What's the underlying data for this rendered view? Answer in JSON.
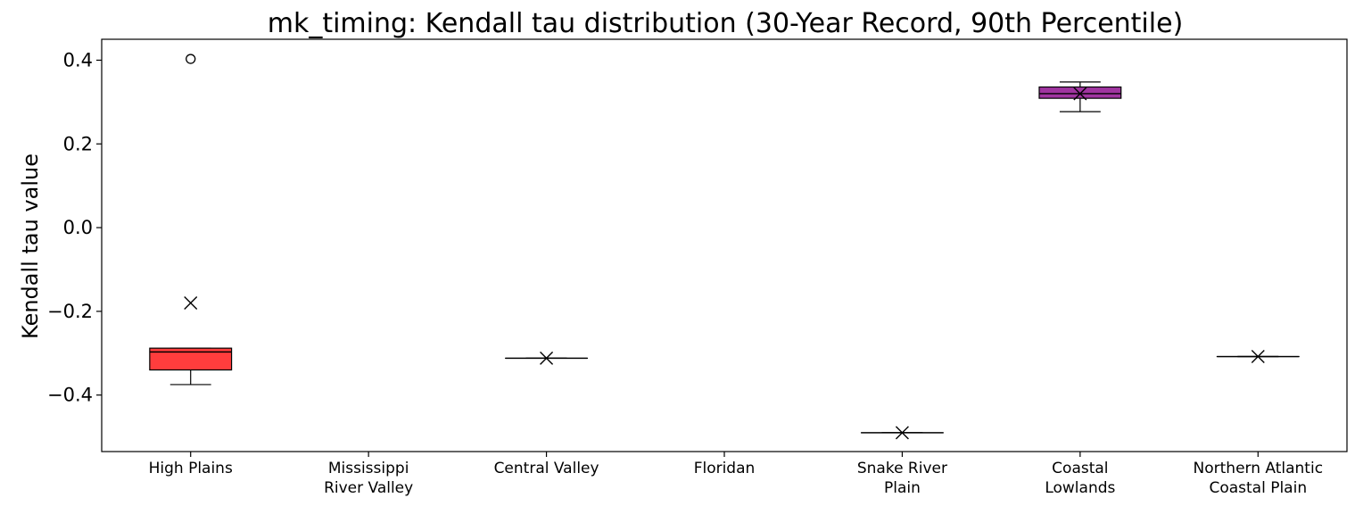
{
  "chart_data": {
    "type": "box",
    "title": "mk_timing: Kendall tau distribution (30-Year Record, 90th Percentile)",
    "xlabel": "",
    "ylabel": "Kendall tau value",
    "ylim": [
      -0.535,
      0.45
    ],
    "yticks": [
      -0.4,
      -0.2,
      0.0,
      0.2,
      0.4
    ],
    "ytick_labels": [
      "−0.4",
      "−0.2",
      "0.0",
      "0.2",
      "0.4"
    ],
    "grid": false,
    "categories": [
      [
        "High Plains"
      ],
      [
        "Mississippi",
        "River Valley"
      ],
      [
        "Central Valley"
      ],
      [
        "Floridan"
      ],
      [
        "Snake River",
        "Plain"
      ],
      [
        "Coastal",
        "Lowlands"
      ],
      [
        "Northern Atlantic",
        "Coastal Plain"
      ]
    ],
    "boxes": [
      {
        "color": "#ff3333",
        "whisker_low": -0.375,
        "q1": -0.34,
        "median": -0.297,
        "q3": -0.288,
        "whisker_high": -0.288,
        "mean": -0.18,
        "outliers": [
          0.403
        ]
      },
      null,
      {
        "color": "#000000",
        "whisker_low": -0.312,
        "q1": -0.312,
        "median": -0.312,
        "q3": -0.312,
        "whisker_high": -0.312,
        "mean": -0.312,
        "outliers": []
      },
      null,
      {
        "color": "#000000",
        "whisker_low": -0.49,
        "q1": -0.49,
        "median": -0.49,
        "q3": -0.49,
        "whisker_high": -0.49,
        "mean": -0.49,
        "outliers": []
      },
      {
        "color": "#9b2a9b",
        "whisker_low": 0.277,
        "q1": 0.309,
        "median": 0.32,
        "q3": 0.336,
        "whisker_high": 0.348,
        "mean": 0.32,
        "outliers": []
      },
      {
        "color": "#000000",
        "whisker_low": -0.308,
        "q1": -0.308,
        "median": -0.308,
        "q3": -0.308,
        "whisker_high": -0.308,
        "mean": -0.308,
        "outliers": []
      }
    ]
  }
}
